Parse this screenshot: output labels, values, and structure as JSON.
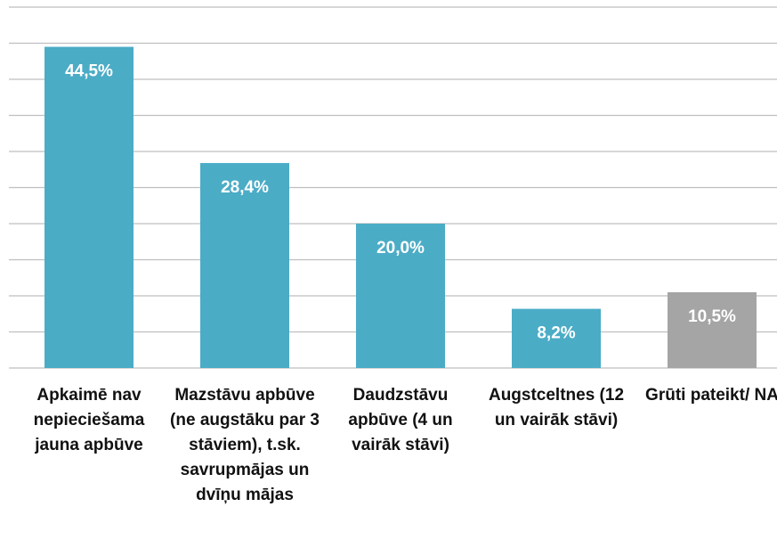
{
  "chart_data": {
    "type": "bar",
    "categories": [
      "Apkaimē nav nepieciešama jauna apbūve",
      "Mazstāvu apbūve (ne augstāku par 3 stāviem), t.sk. savrupmājas un dvīņu mājas",
      "Daudzstāvu apbūve (4 un vairāk stāvi)",
      "Augstceltnes (12 un vairāk stāvi)",
      "Grūti pateikt/ NA"
    ],
    "values": [
      44.5,
      28.4,
      20.0,
      8.2,
      10.5
    ],
    "value_labels": [
      "44,5%",
      "28,4%",
      "20,0%",
      "8,2%",
      "10,5%"
    ],
    "colors": [
      "#4bacc6",
      "#4bacc6",
      "#4bacc6",
      "#4bacc6",
      "#a5a5a5"
    ],
    "ylim": [
      0,
      50
    ],
    "yticks": [
      0,
      5,
      10,
      15,
      20,
      25,
      30,
      35,
      40,
      45,
      50
    ],
    "grid": true
  }
}
